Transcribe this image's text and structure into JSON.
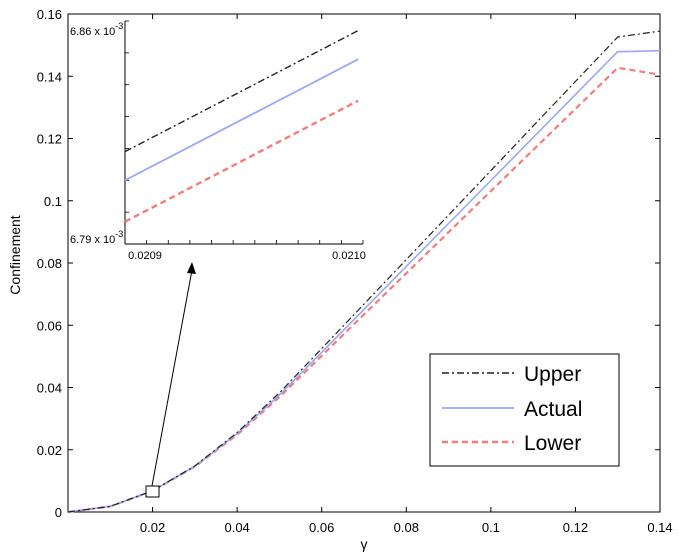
{
  "chart_data": {
    "type": "line",
    "xlabel": "γ",
    "ylabel": "Confinement",
    "xlim": [
      0,
      0.14
    ],
    "ylim": [
      0,
      0.16
    ],
    "x_ticks": [
      "0.02",
      "0.04",
      "0.06",
      "0.08",
      "0.1",
      "0.12",
      "0.14"
    ],
    "y_ticks": [
      "0",
      "0.02",
      "0.04",
      "0.06",
      "0.08",
      "0.1",
      "0.12",
      "0.14",
      "0.16"
    ],
    "grid": false,
    "legend_position": "bottom-right",
    "series": [
      {
        "name": "Upper",
        "color": "#222222",
        "style": "dash-dot",
        "x": [
          0,
          0.01,
          0.02,
          0.03,
          0.04,
          0.05,
          0.06,
          0.07,
          0.08,
          0.09,
          0.1,
          0.11,
          0.12,
          0.13,
          0.14
        ],
        "y": [
          0,
          0.0018,
          0.0068,
          0.0148,
          0.0255,
          0.0383,
          0.0525,
          0.0668,
          0.0811,
          0.0954,
          0.1097,
          0.124,
          0.1383,
          0.1526,
          0.1545
        ]
      },
      {
        "name": "Actual",
        "color": "#9aa8f2",
        "style": "solid",
        "x": [
          0,
          0.01,
          0.02,
          0.03,
          0.04,
          0.05,
          0.06,
          0.07,
          0.08,
          0.09,
          0.1,
          0.11,
          0.12,
          0.13,
          0.14
        ],
        "y": [
          0,
          0.0018,
          0.0068,
          0.0147,
          0.0252,
          0.0376,
          0.0513,
          0.0651,
          0.0789,
          0.0927,
          0.1065,
          0.1203,
          0.1341,
          0.1479,
          0.1482
        ]
      },
      {
        "name": "Lower",
        "color": "#f47c7c",
        "style": "dashed",
        "x": [
          0,
          0.01,
          0.02,
          0.03,
          0.04,
          0.05,
          0.06,
          0.07,
          0.08,
          0.09,
          0.1,
          0.11,
          0.12,
          0.13,
          0.14
        ],
        "y": [
          0,
          0.0018,
          0.0068,
          0.0146,
          0.0248,
          0.0369,
          0.0502,
          0.0635,
          0.0767,
          0.0899,
          0.1031,
          0.1163,
          0.1295,
          0.1427,
          0.1405
        ]
      }
    ],
    "inset": {
      "xlim": [
        0.02089,
        0.02101
      ],
      "ylim": [
        0.00679,
        0.00686
      ],
      "x_ticks": [
        "0.0209",
        "0.0210"
      ],
      "y_top_label": "6.86 x 10",
      "y_bottom_label": "6.79 x 10",
      "y_exponent": "-3",
      "series": [
        {
          "name": "Upper",
          "y": [
            0.006819,
            0.006857
          ]
        },
        {
          "name": "Actual",
          "y": [
            0.00681,
            0.006848
          ]
        },
        {
          "name": "Lower",
          "y": [
            0.006797,
            0.006835
          ]
        }
      ]
    }
  }
}
